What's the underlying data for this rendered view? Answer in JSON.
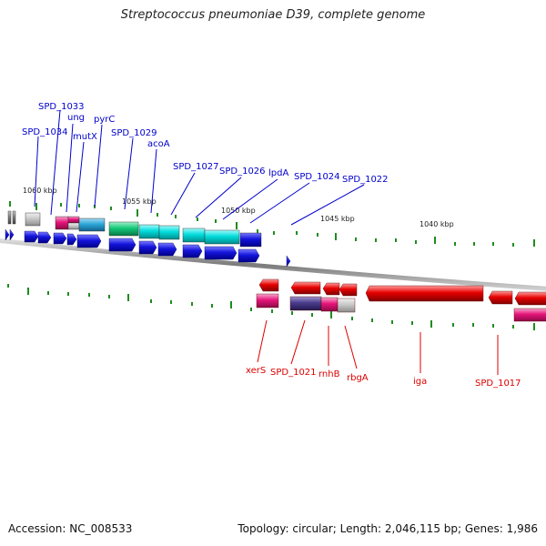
{
  "title": "Streptococcus pneumoniae D39, complete genome",
  "footer": {
    "accession": "Accession: NC_008533",
    "summary": "Topology: circular; Length: 2,046,115 bp; Genes: 1,986"
  },
  "colors": {
    "forward_label": "#0000cc",
    "reverse_label": "#dd0000",
    "backbone": "#8c8c8c",
    "tick": "#1e8c1e"
  },
  "scale": {
    "unit": "kbp",
    "labeled_positions_kbp": [
      1060,
      1055,
      1050,
      1045,
      1040
    ],
    "labels": [
      "1060 kbp",
      "1055 kbp",
      "1050 kbp",
      "1045 kbp",
      "1040 kbp"
    ]
  },
  "forward_gene_labels": [
    "SPD_1033",
    "ung",
    "SPD_1034",
    "mutX",
    "pyrC",
    "SPD_1029",
    "acoA",
    "SPD_1027",
    "SPD_1026",
    "lpdA",
    "SPD_1024",
    "SPD_1022"
  ],
  "reverse_gene_labels": [
    "xerS",
    "SPD_1021",
    "rnhB",
    "rbgA",
    "iga",
    "SPD_1017"
  ],
  "feature_colors": {
    "blue": "#1414dc",
    "teal": "#00cccc",
    "blue_teal": "#2aa8d8",
    "green": "#14c878",
    "magenta": "#e6147a",
    "purple": "#4b3c8c",
    "grey": "#c8c8c8",
    "dark_grey": "#828282",
    "red": "#e60000"
  }
}
